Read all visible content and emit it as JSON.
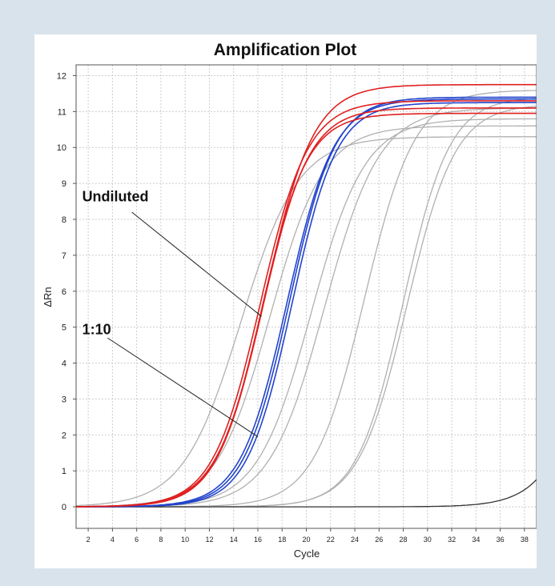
{
  "chart_data": {
    "type": "line",
    "title": "Amplification Plot",
    "xlabel": "Cycle",
    "ylabel": "ΔRn",
    "xlim": [
      1,
      39
    ],
    "ylim": [
      -0.6,
      12.3
    ],
    "xticks": [
      2,
      4,
      6,
      8,
      10,
      12,
      14,
      16,
      18,
      20,
      22,
      24,
      26,
      28,
      30,
      32,
      34,
      36,
      38
    ],
    "yticks": [
      0,
      1,
      2,
      3,
      4,
      5,
      6,
      7,
      8,
      9,
      10,
      11,
      12
    ],
    "grid": true,
    "colors": {
      "red": "#e02020",
      "blue": "#2244cc",
      "gray": "#b0b0b0",
      "dark": "#333333"
    },
    "series": [
      {
        "color": "red",
        "midpoint": 16.4,
        "slope": 0.52,
        "plateau": 11.1
      },
      {
        "color": "red",
        "midpoint": 16.2,
        "slope": 0.51,
        "plateau": 11.3
      },
      {
        "color": "red",
        "midpoint": 16.6,
        "slope": 0.5,
        "plateau": 11.75
      },
      {
        "color": "red",
        "midpoint": 16.3,
        "slope": 0.53,
        "plateau": 10.95
      },
      {
        "color": "blue",
        "midpoint": 18.6,
        "slope": 0.53,
        "plateau": 11.4
      },
      {
        "color": "blue",
        "midpoint": 18.4,
        "slope": 0.52,
        "plateau": 11.35
      },
      {
        "color": "blue",
        "midpoint": 18.8,
        "slope": 0.54,
        "plateau": 11.25
      },
      {
        "color": "gray",
        "midpoint": 14.6,
        "slope": 0.42,
        "plateau": 10.3
      },
      {
        "color": "gray",
        "midpoint": 17.0,
        "slope": 0.45,
        "plateau": 10.6
      },
      {
        "color": "gray",
        "midpoint": 20.4,
        "slope": 0.45,
        "plateau": 10.8
      },
      {
        "color": "gray",
        "midpoint": 21.5,
        "slope": 0.44,
        "plateau": 11.1
      },
      {
        "color": "gray",
        "midpoint": 24.8,
        "slope": 0.48,
        "plateau": 11.6
      },
      {
        "color": "gray",
        "midpoint": 28.0,
        "slope": 0.52,
        "plateau": 11.4
      },
      {
        "color": "gray",
        "midpoint": 28.3,
        "slope": 0.5,
        "plateau": 11.2
      },
      {
        "color": "dark",
        "midpoint": 44.0,
        "slope": 0.5,
        "plateau": 10.0
      }
    ],
    "annotations": [
      {
        "text": "Undiluted",
        "label_at": [
          1.5,
          8.5
        ],
        "arrow_from": [
          5.6,
          8.2
        ],
        "arrow_to": [
          16.3,
          5.3
        ]
      },
      {
        "text": "1:10",
        "label_at": [
          1.5,
          4.8
        ],
        "arrow_from": [
          3.6,
          4.7
        ],
        "arrow_to": [
          16.0,
          1.95
        ]
      }
    ]
  }
}
